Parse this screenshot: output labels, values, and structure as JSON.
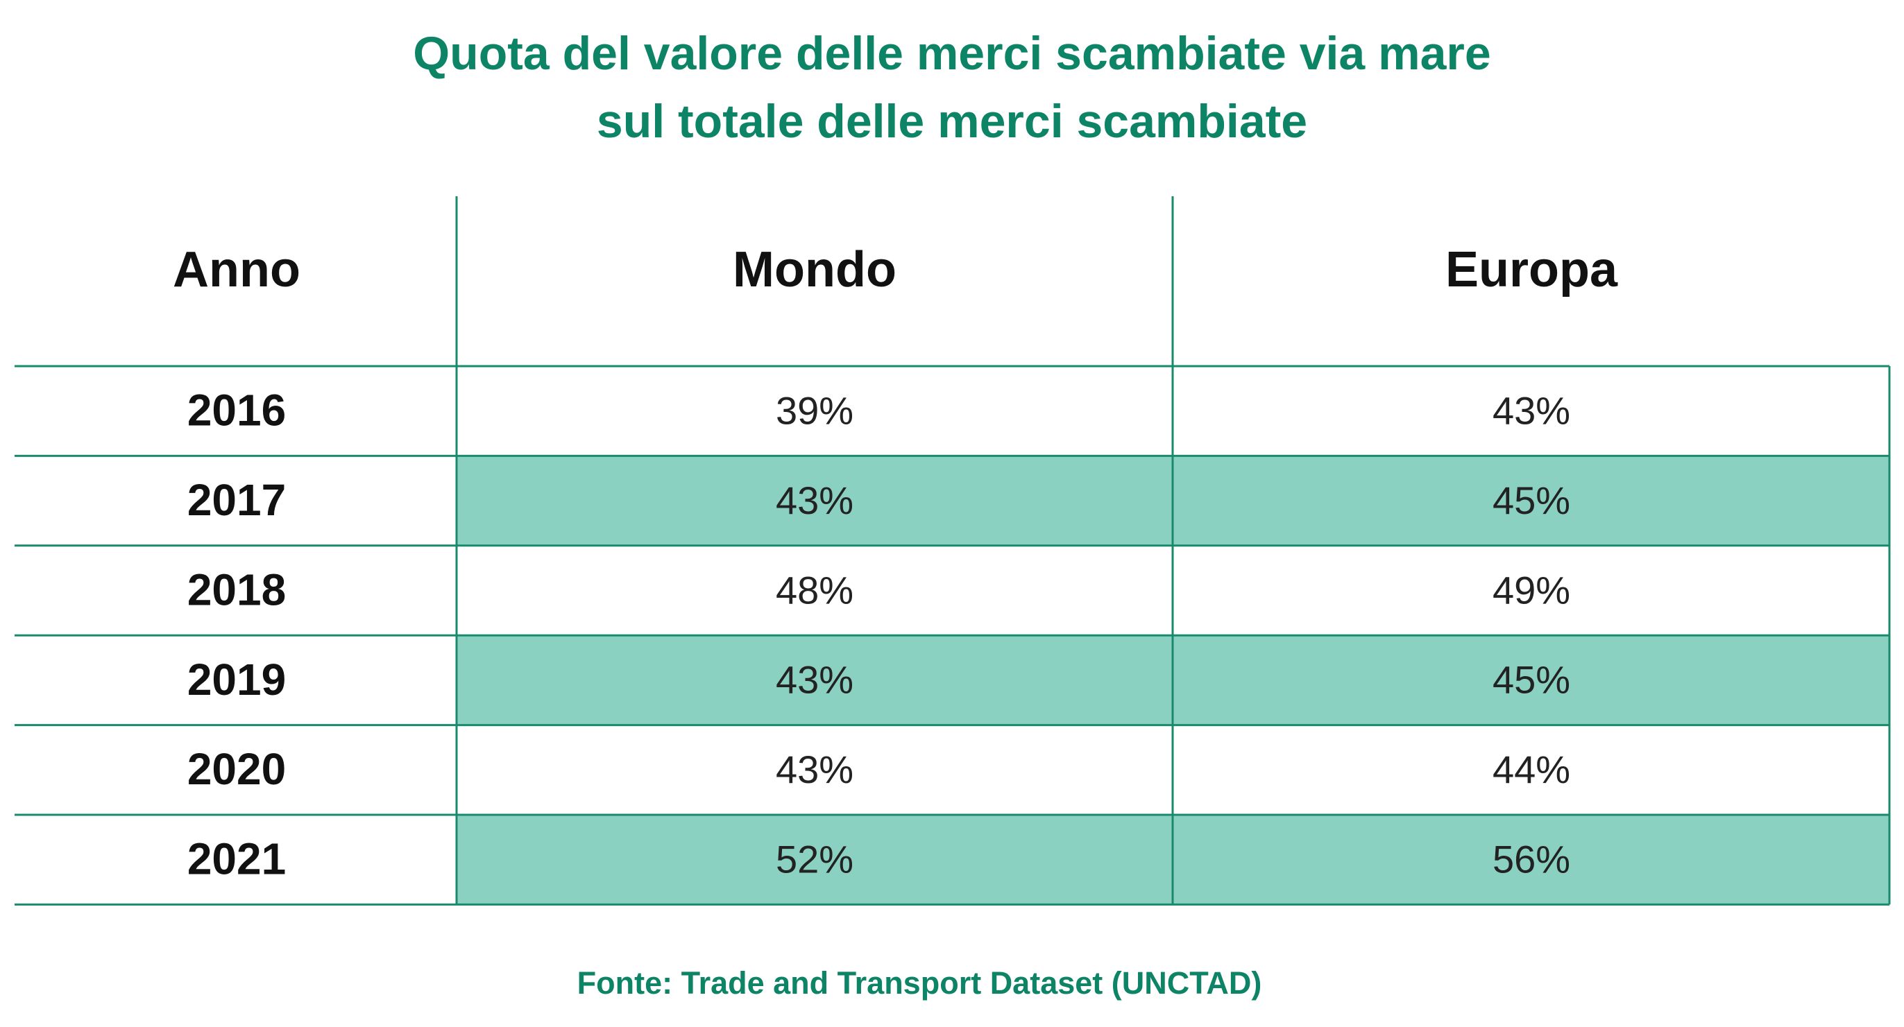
{
  "header": {
    "title_lines": [
      "Quota del valore delle merci scambiate via mare",
      "sul totale delle merci scambiate"
    ]
  },
  "table": {
    "columns": [
      "Anno",
      "Mondo",
      "Europa"
    ],
    "rows": [
      [
        "2016",
        "39%",
        "43%"
      ],
      [
        "2017",
        "43%",
        "45%"
      ],
      [
        "2018",
        "48%",
        "49%"
      ],
      [
        "2019",
        "43%",
        "45%"
      ],
      [
        "2020",
        "43%",
        "44%"
      ],
      [
        "2021",
        "52%",
        "56%"
      ]
    ]
  },
  "footer": {
    "source": "Fonte: Trade and Transport Dataset (UNCTAD)"
  }
}
